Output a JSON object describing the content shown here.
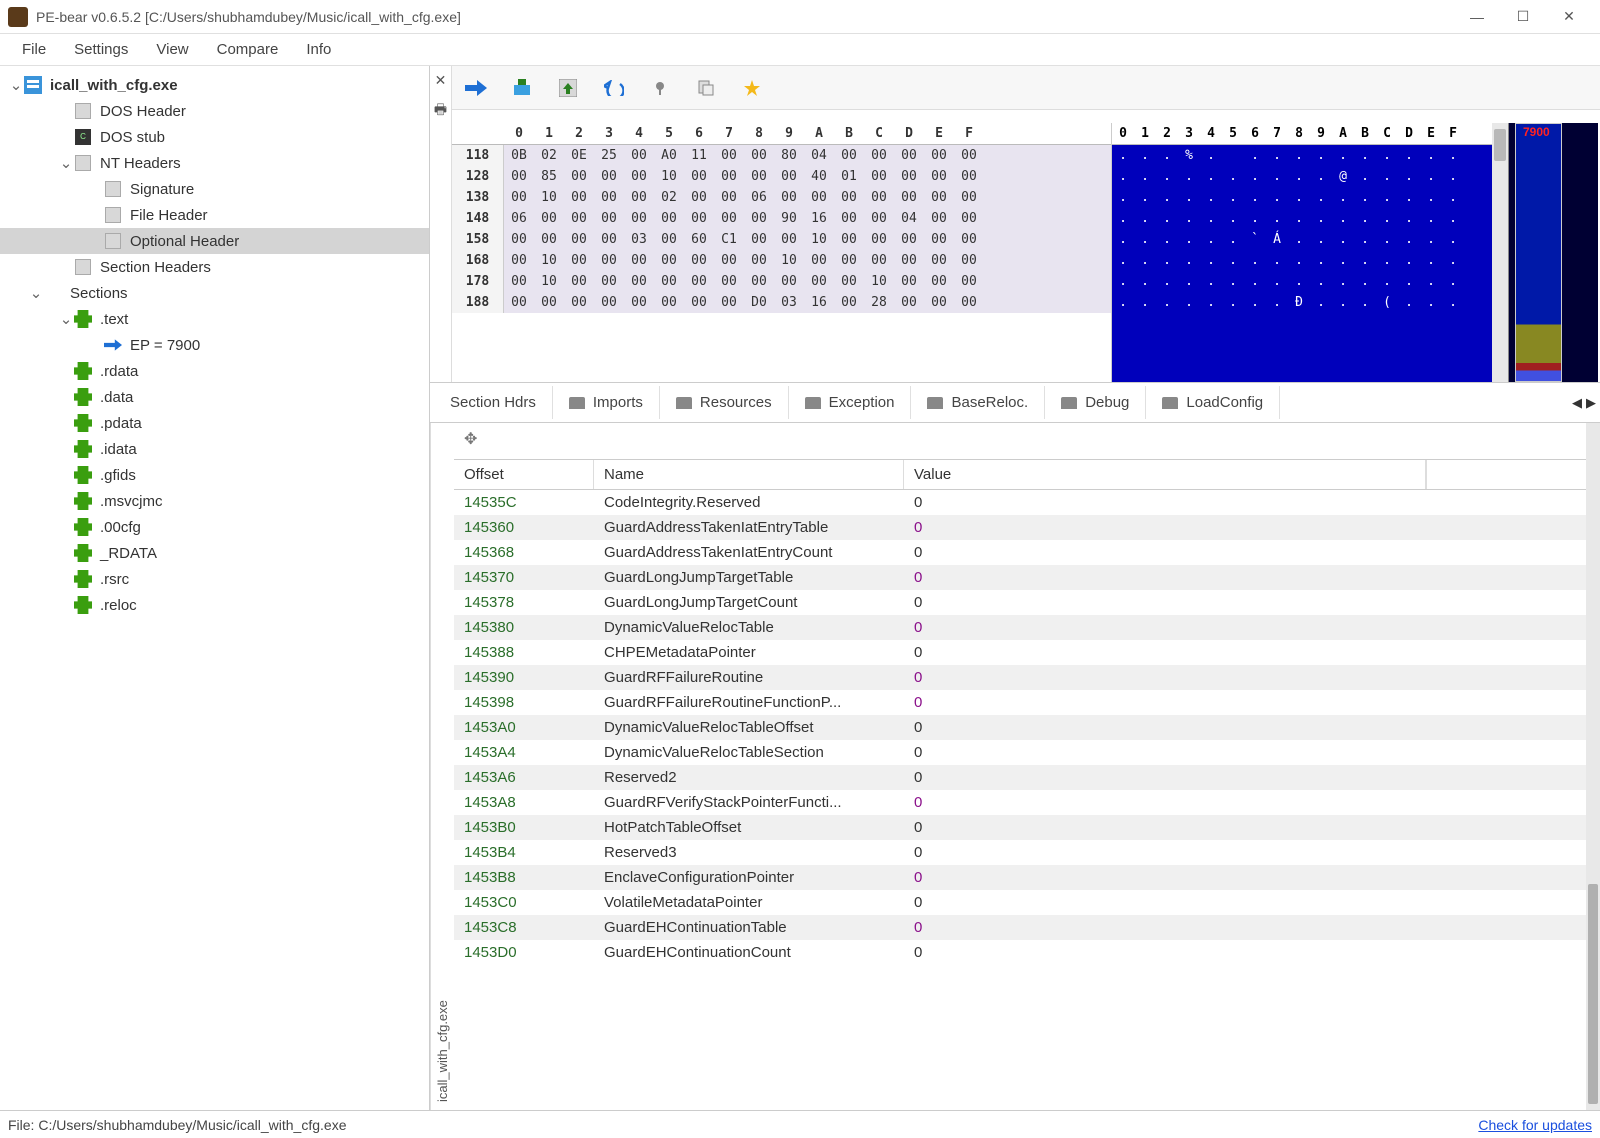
{
  "window": {
    "title": "PE-bear v0.6.5.2 [C:/Users/shubhamdubey/Music/icall_with_cfg.exe]"
  },
  "menus": [
    "File",
    "Settings",
    "View",
    "Compare",
    "Info"
  ],
  "tree": {
    "root": "icall_with_cfg.exe",
    "items": [
      {
        "label": "DOS Header",
        "indent": 1,
        "icon": "file"
      },
      {
        "label": "DOS stub",
        "indent": 1,
        "icon": "code"
      },
      {
        "label": "NT Headers",
        "indent": 1,
        "icon": "file",
        "expandable": true
      },
      {
        "label": "Signature",
        "indent": 2,
        "icon": "file"
      },
      {
        "label": "File Header",
        "indent": 2,
        "icon": "file"
      },
      {
        "label": "Optional Header",
        "indent": 2,
        "icon": "file",
        "selected": true
      },
      {
        "label": "Section Headers",
        "indent": 1,
        "icon": "file"
      },
      {
        "label": "Sections",
        "indent": 0,
        "expandable": true
      },
      {
        "label": ".text",
        "indent": 1,
        "icon": "puzzle",
        "expandable": true
      },
      {
        "label": "EP = 7900",
        "indent": 2,
        "icon": "arrow"
      },
      {
        "label": ".rdata",
        "indent": 1,
        "icon": "puzzle"
      },
      {
        "label": ".data",
        "indent": 1,
        "icon": "puzzle"
      },
      {
        "label": ".pdata",
        "indent": 1,
        "icon": "puzzle"
      },
      {
        "label": ".idata",
        "indent": 1,
        "icon": "puzzle"
      },
      {
        "label": ".gfids",
        "indent": 1,
        "icon": "puzzle"
      },
      {
        "label": ".msvcjmc",
        "indent": 1,
        "icon": "puzzle"
      },
      {
        "label": ".00cfg",
        "indent": 1,
        "icon": "puzzle"
      },
      {
        "label": "_RDATA",
        "indent": 1,
        "icon": "puzzle"
      },
      {
        "label": ".rsrc",
        "indent": 1,
        "icon": "puzzle"
      },
      {
        "label": ".reloc",
        "indent": 1,
        "icon": "puzzle"
      }
    ]
  },
  "hex": {
    "cols": [
      "0",
      "1",
      "2",
      "3",
      "4",
      "5",
      "6",
      "7",
      "8",
      "9",
      "A",
      "B",
      "C",
      "D",
      "E",
      "F"
    ],
    "rows": [
      {
        "off": "118",
        "b": [
          "0B",
          "02",
          "0E",
          "25",
          "00",
          "A0",
          "11",
          "00",
          "00",
          "80",
          "04",
          "00",
          "00",
          "00",
          "00",
          "00"
        ]
      },
      {
        "off": "128",
        "b": [
          "00",
          "85",
          "00",
          "00",
          "00",
          "10",
          "00",
          "00",
          "00",
          "00",
          "40",
          "01",
          "00",
          "00",
          "00",
          "00"
        ]
      },
      {
        "off": "138",
        "b": [
          "00",
          "10",
          "00",
          "00",
          "00",
          "02",
          "00",
          "00",
          "06",
          "00",
          "00",
          "00",
          "00",
          "00",
          "00",
          "00"
        ]
      },
      {
        "off": "148",
        "b": [
          "06",
          "00",
          "00",
          "00",
          "00",
          "00",
          "00",
          "00",
          "00",
          "90",
          "16",
          "00",
          "00",
          "04",
          "00",
          "00"
        ]
      },
      {
        "off": "158",
        "b": [
          "00",
          "00",
          "00",
          "00",
          "03",
          "00",
          "60",
          "C1",
          "00",
          "00",
          "10",
          "00",
          "00",
          "00",
          "00",
          "00"
        ]
      },
      {
        "off": "168",
        "b": [
          "00",
          "10",
          "00",
          "00",
          "00",
          "00",
          "00",
          "00",
          "00",
          "10",
          "00",
          "00",
          "00",
          "00",
          "00",
          "00"
        ]
      },
      {
        "off": "178",
        "b": [
          "00",
          "10",
          "00",
          "00",
          "00",
          "00",
          "00",
          "00",
          "00",
          "00",
          "00",
          "00",
          "10",
          "00",
          "00",
          "00"
        ]
      },
      {
        "off": "188",
        "b": [
          "00",
          "00",
          "00",
          "00",
          "00",
          "00",
          "00",
          "00",
          "D0",
          "03",
          "16",
          "00",
          "28",
          "00",
          "00",
          "00"
        ]
      }
    ],
    "ascii_cols": [
      "0",
      "1",
      "2",
      "3",
      "4",
      "5",
      "6",
      "7",
      "8",
      "9",
      "A",
      "B",
      "C",
      "D",
      "E",
      "F"
    ],
    "ascii_rows": [
      [
        ".",
        ".",
        ".",
        "%",
        ".",
        " ",
        ".",
        ".",
        ".",
        ".",
        ".",
        ".",
        ".",
        ".",
        ".",
        "."
      ],
      [
        ".",
        ".",
        ".",
        ".",
        ".",
        ".",
        ".",
        ".",
        ".",
        ".",
        "@",
        ".",
        ".",
        ".",
        ".",
        "."
      ],
      [
        ".",
        ".",
        ".",
        ".",
        ".",
        ".",
        ".",
        ".",
        ".",
        ".",
        ".",
        ".",
        ".",
        ".",
        ".",
        "."
      ],
      [
        ".",
        ".",
        ".",
        ".",
        ".",
        ".",
        ".",
        ".",
        ".",
        ".",
        ".",
        ".",
        ".",
        ".",
        ".",
        "."
      ],
      [
        ".",
        ".",
        ".",
        ".",
        ".",
        ".",
        "`",
        "Á",
        ".",
        ".",
        ".",
        ".",
        ".",
        ".",
        ".",
        "."
      ],
      [
        ".",
        ".",
        ".",
        ".",
        ".",
        ".",
        ".",
        ".",
        ".",
        ".",
        ".",
        ".",
        ".",
        ".",
        ".",
        "."
      ],
      [
        ".",
        ".",
        ".",
        ".",
        ".",
        ".",
        ".",
        ".",
        ".",
        ".",
        ".",
        ".",
        ".",
        ".",
        ".",
        "."
      ],
      [
        ".",
        ".",
        ".",
        ".",
        ".",
        ".",
        ".",
        ".",
        "Ð",
        ".",
        ".",
        ".",
        "(",
        ".",
        ".",
        "."
      ]
    ]
  },
  "minimap_label": "7900",
  "tabs": [
    "Section Hdrs",
    "Imports",
    "Resources",
    "Exception",
    "BaseReloc.",
    "Debug",
    "LoadConfig"
  ],
  "cols": {
    "offset": "Offset",
    "name": "Name",
    "value": "Value"
  },
  "rows": [
    {
      "offset": "14535C",
      "name": "CodeIntegrity.Reserved",
      "value": "0",
      "purple": false
    },
    {
      "offset": "145360",
      "name": "GuardAddressTakenIatEntryTable",
      "value": "0",
      "purple": true
    },
    {
      "offset": "145368",
      "name": "GuardAddressTakenIatEntryCount",
      "value": "0",
      "purple": false
    },
    {
      "offset": "145370",
      "name": "GuardLongJumpTargetTable",
      "value": "0",
      "purple": true
    },
    {
      "offset": "145378",
      "name": "GuardLongJumpTargetCount",
      "value": "0",
      "purple": false
    },
    {
      "offset": "145380",
      "name": "DynamicValueRelocTable",
      "value": "0",
      "purple": true
    },
    {
      "offset": "145388",
      "name": "CHPEMetadataPointer",
      "value": "0",
      "purple": false
    },
    {
      "offset": "145390",
      "name": "GuardRFFailureRoutine",
      "value": "0",
      "purple": true
    },
    {
      "offset": "145398",
      "name": "GuardRFFailureRoutineFunctionP...",
      "value": "0",
      "purple": true
    },
    {
      "offset": "1453A0",
      "name": "DynamicValueRelocTableOffset",
      "value": "0",
      "purple": false
    },
    {
      "offset": "1453A4",
      "name": "DynamicValueRelocTableSection",
      "value": "0",
      "purple": false
    },
    {
      "offset": "1453A6",
      "name": "Reserved2",
      "value": "0",
      "purple": false
    },
    {
      "offset": "1453A8",
      "name": "GuardRFVerifyStackPointerFuncti...",
      "value": "0",
      "purple": true
    },
    {
      "offset": "1453B0",
      "name": "HotPatchTableOffset",
      "value": "0",
      "purple": false
    },
    {
      "offset": "1453B4",
      "name": "Reserved3",
      "value": "0",
      "purple": false
    },
    {
      "offset": "1453B8",
      "name": "EnclaveConfigurationPointer",
      "value": "0",
      "purple": true
    },
    {
      "offset": "1453C0",
      "name": "VolatileMetadataPointer",
      "value": "0",
      "purple": false
    },
    {
      "offset": "1453C8",
      "name": "GuardEHContinuationTable",
      "value": "0",
      "purple": true
    },
    {
      "offset": "1453D0",
      "name": "GuardEHContinuationCount",
      "value": "0",
      "purple": false
    }
  ],
  "vert_label": "icall_with_cfg.exe",
  "status": {
    "path": "File: C:/Users/shubhamdubey/Music/icall_with_cfg.exe",
    "update": "Check for updates"
  }
}
